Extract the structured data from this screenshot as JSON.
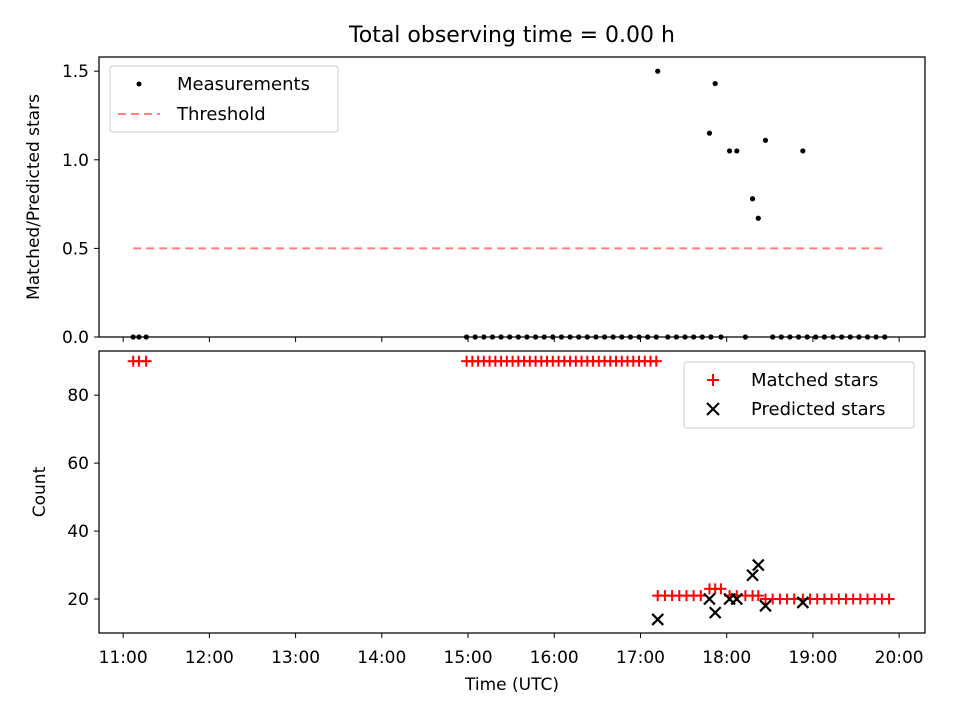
{
  "chart_data": [
    {
      "type": "scatter",
      "title": "Total observing time = 0.00 h",
      "xlabel": "",
      "ylabel": "Matched/Predicted stars",
      "xlim": [
        "11:00",
        "20:00"
      ],
      "xlim_ext": [
        10.72,
        20.3
      ],
      "ylim": [
        0,
        1.58
      ],
      "xticks": [
        "11:00",
        "12:00",
        "13:00",
        "14:00",
        "15:00",
        "16:00",
        "17:00",
        "18:00",
        "19:00",
        "20:00"
      ],
      "yticks": [
        "0.0",
        "0.5",
        "1.0",
        "1.5"
      ],
      "legend_position": "top-left",
      "series": [
        {
          "name": "Measurements",
          "marker": "dot",
          "color": "#000000",
          "points": [
            [
              "11:07",
              0
            ],
            [
              "11:11",
              0
            ],
            [
              "11:16",
              0
            ],
            [
              "14:59",
              0
            ],
            [
              "15:05",
              0
            ],
            [
              "15:11",
              0
            ],
            [
              "15:17",
              0
            ],
            [
              "15:23",
              0
            ],
            [
              "15:29",
              0
            ],
            [
              "15:35",
              0
            ],
            [
              "15:41",
              0
            ],
            [
              "15:47",
              0
            ],
            [
              "15:53",
              0
            ],
            [
              "15:59",
              0
            ],
            [
              "16:05",
              0
            ],
            [
              "16:11",
              0
            ],
            [
              "16:17",
              0
            ],
            [
              "16:23",
              0
            ],
            [
              "16:29",
              0
            ],
            [
              "16:35",
              0
            ],
            [
              "16:41",
              0
            ],
            [
              "16:47",
              0
            ],
            [
              "16:53",
              0
            ],
            [
              "16:59",
              0
            ],
            [
              "17:05",
              0
            ],
            [
              "17:11",
              0
            ],
            [
              "17:12",
              1.5
            ],
            [
              "17:19",
              0
            ],
            [
              "17:25",
              0
            ],
            [
              "17:31",
              0
            ],
            [
              "17:37",
              0
            ],
            [
              "17:43",
              0
            ],
            [
              "17:49",
              0
            ],
            [
              "17:48",
              1.15
            ],
            [
              "17:52",
              1.43
            ],
            [
              "17:56",
              0
            ],
            [
              "18:02",
              1.05
            ],
            [
              "18:07",
              1.05
            ],
            [
              "18:13",
              0
            ],
            [
              "18:18",
              0.78
            ],
            [
              "18:22",
              0.67
            ],
            [
              "18:27",
              1.11
            ],
            [
              "18:32",
              0
            ],
            [
              "18:38",
              0
            ],
            [
              "18:44",
              0
            ],
            [
              "18:50",
              0
            ],
            [
              "18:53",
              1.05
            ],
            [
              "18:56",
              0
            ],
            [
              "19:02",
              0
            ],
            [
              "19:08",
              0
            ],
            [
              "19:14",
              0
            ],
            [
              "19:20",
              0
            ],
            [
              "19:26",
              0
            ],
            [
              "19:32",
              0
            ],
            [
              "19:38",
              0
            ],
            [
              "19:44",
              0
            ],
            [
              "19:50",
              0
            ]
          ]
        },
        {
          "name": "Threshold",
          "marker": "dashed-line",
          "color": "#ff7f7f",
          "points": [
            [
              "11:07",
              0.5
            ],
            [
              "19:50",
              0.5
            ]
          ]
        }
      ]
    },
    {
      "type": "scatter",
      "title": "",
      "xlabel": "Time (UTC)",
      "ylabel": "Count",
      "xlim": [
        "11:00",
        "20:00"
      ],
      "xlim_ext": [
        10.72,
        20.3
      ],
      "ylim": [
        10,
        93
      ],
      "xticks": [
        "11:00",
        "12:00",
        "13:00",
        "14:00",
        "15:00",
        "16:00",
        "17:00",
        "18:00",
        "19:00",
        "20:00"
      ],
      "yticks": [
        "20",
        "40",
        "60",
        "80"
      ],
      "legend_position": "top-right",
      "series": [
        {
          "name": "Matched stars",
          "marker": "plus",
          "color": "#ff0000",
          "points": [
            [
              "11:07",
              90
            ],
            [
              "11:11",
              90
            ],
            [
              "11:16",
              90
            ],
            [
              "14:59",
              90
            ],
            [
              "15:03",
              90
            ],
            [
              "15:07",
              90
            ],
            [
              "15:11",
              90
            ],
            [
              "15:15",
              90
            ],
            [
              "15:19",
              90
            ],
            [
              "15:23",
              90
            ],
            [
              "15:27",
              90
            ],
            [
              "15:31",
              90
            ],
            [
              "15:35",
              90
            ],
            [
              "15:39",
              90
            ],
            [
              "15:43",
              90
            ],
            [
              "15:47",
              90
            ],
            [
              "15:51",
              90
            ],
            [
              "15:55",
              90
            ],
            [
              "15:59",
              90
            ],
            [
              "16:03",
              90
            ],
            [
              "16:07",
              90
            ],
            [
              "16:11",
              90
            ],
            [
              "16:15",
              90
            ],
            [
              "16:19",
              90
            ],
            [
              "16:23",
              90
            ],
            [
              "16:27",
              90
            ],
            [
              "16:31",
              90
            ],
            [
              "16:35",
              90
            ],
            [
              "16:39",
              90
            ],
            [
              "16:43",
              90
            ],
            [
              "16:47",
              90
            ],
            [
              "16:51",
              90
            ],
            [
              "16:55",
              90
            ],
            [
              "16:59",
              90
            ],
            [
              "17:03",
              90
            ],
            [
              "17:07",
              90
            ],
            [
              "17:11",
              90
            ],
            [
              "17:12",
              21
            ],
            [
              "17:17",
              21
            ],
            [
              "17:22",
              21
            ],
            [
              "17:27",
              21
            ],
            [
              "17:32",
              21
            ],
            [
              "17:37",
              21
            ],
            [
              "17:42",
              21
            ],
            [
              "17:48",
              23
            ],
            [
              "17:52",
              23
            ],
            [
              "17:56",
              23
            ],
            [
              "18:02",
              21
            ],
            [
              "18:07",
              21
            ],
            [
              "18:13",
              21
            ],
            [
              "18:18",
              21
            ],
            [
              "18:22",
              21
            ],
            [
              "18:27",
              20
            ],
            [
              "18:32",
              20
            ],
            [
              "18:37",
              20
            ],
            [
              "18:42",
              20
            ],
            [
              "18:47",
              20
            ],
            [
              "18:53",
              20
            ],
            [
              "18:58",
              20
            ],
            [
              "19:03",
              20
            ],
            [
              "19:08",
              20
            ],
            [
              "19:13",
              20
            ],
            [
              "19:18",
              20
            ],
            [
              "19:23",
              20
            ],
            [
              "19:28",
              20
            ],
            [
              "19:33",
              20
            ],
            [
              "19:38",
              20
            ],
            [
              "19:43",
              20
            ],
            [
              "19:48",
              20
            ],
            [
              "19:53",
              20
            ]
          ]
        },
        {
          "name": "Predicted stars",
          "marker": "x",
          "color": "#000000",
          "points": [
            [
              "17:12",
              14
            ],
            [
              "17:48",
              20
            ],
            [
              "17:52",
              16
            ],
            [
              "18:02",
              20
            ],
            [
              "18:07",
              20
            ],
            [
              "18:18",
              27
            ],
            [
              "18:22",
              30
            ],
            [
              "18:27",
              18
            ],
            [
              "18:53",
              19
            ]
          ]
        }
      ]
    }
  ]
}
